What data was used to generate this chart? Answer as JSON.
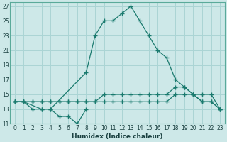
{
  "xlabel": "Humidex (Indice chaleur)",
  "background_color": "#cde8e8",
  "grid_color": "#aad4d4",
  "line_color": "#1a7a6e",
  "xlim": [
    -0.5,
    23.5
  ],
  "ylim": [
    11,
    27.5
  ],
  "yticks": [
    11,
    13,
    15,
    17,
    19,
    21,
    23,
    25,
    27
  ],
  "xticks": [
    0,
    1,
    2,
    3,
    4,
    5,
    6,
    7,
    8,
    9,
    10,
    11,
    12,
    13,
    14,
    15,
    16,
    17,
    18,
    19,
    20,
    21,
    22,
    23
  ],
  "series": [
    {
      "x": [
        0,
        1,
        2,
        3,
        4,
        5,
        6,
        7,
        8
      ],
      "y": [
        14,
        14,
        13,
        13,
        13,
        12,
        12,
        11,
        13
      ]
    },
    {
      "x": [
        0,
        1,
        3,
        4,
        8,
        9,
        10,
        11,
        12,
        13,
        14,
        15,
        16,
        17,
        18,
        19,
        20,
        21,
        22,
        23
      ],
      "y": [
        14,
        14,
        13,
        13,
        18,
        23,
        25,
        25,
        26,
        27,
        25,
        23,
        21,
        20,
        17,
        16,
        15,
        14,
        14,
        13
      ]
    },
    {
      "x": [
        0,
        1,
        2,
        3,
        4,
        5,
        6,
        7,
        8,
        9,
        10,
        11,
        12,
        13,
        14,
        15,
        16,
        17,
        18,
        19,
        20,
        21,
        22,
        23
      ],
      "y": [
        14,
        14,
        14,
        14,
        14,
        14,
        14,
        14,
        14,
        14,
        15,
        15,
        15,
        15,
        15,
        15,
        15,
        15,
        16,
        16,
        15,
        14,
        14,
        13
      ]
    },
    {
      "x": [
        0,
        1,
        2,
        3,
        4,
        5,
        6,
        7,
        8,
        9,
        10,
        11,
        12,
        13,
        14,
        15,
        16,
        17,
        18,
        19,
        20,
        21,
        22,
        23
      ],
      "y": [
        14,
        14,
        14,
        14,
        14,
        14,
        14,
        14,
        14,
        14,
        14,
        14,
        14,
        14,
        14,
        14,
        14,
        14,
        15,
        15,
        15,
        15,
        15,
        13
      ]
    }
  ]
}
